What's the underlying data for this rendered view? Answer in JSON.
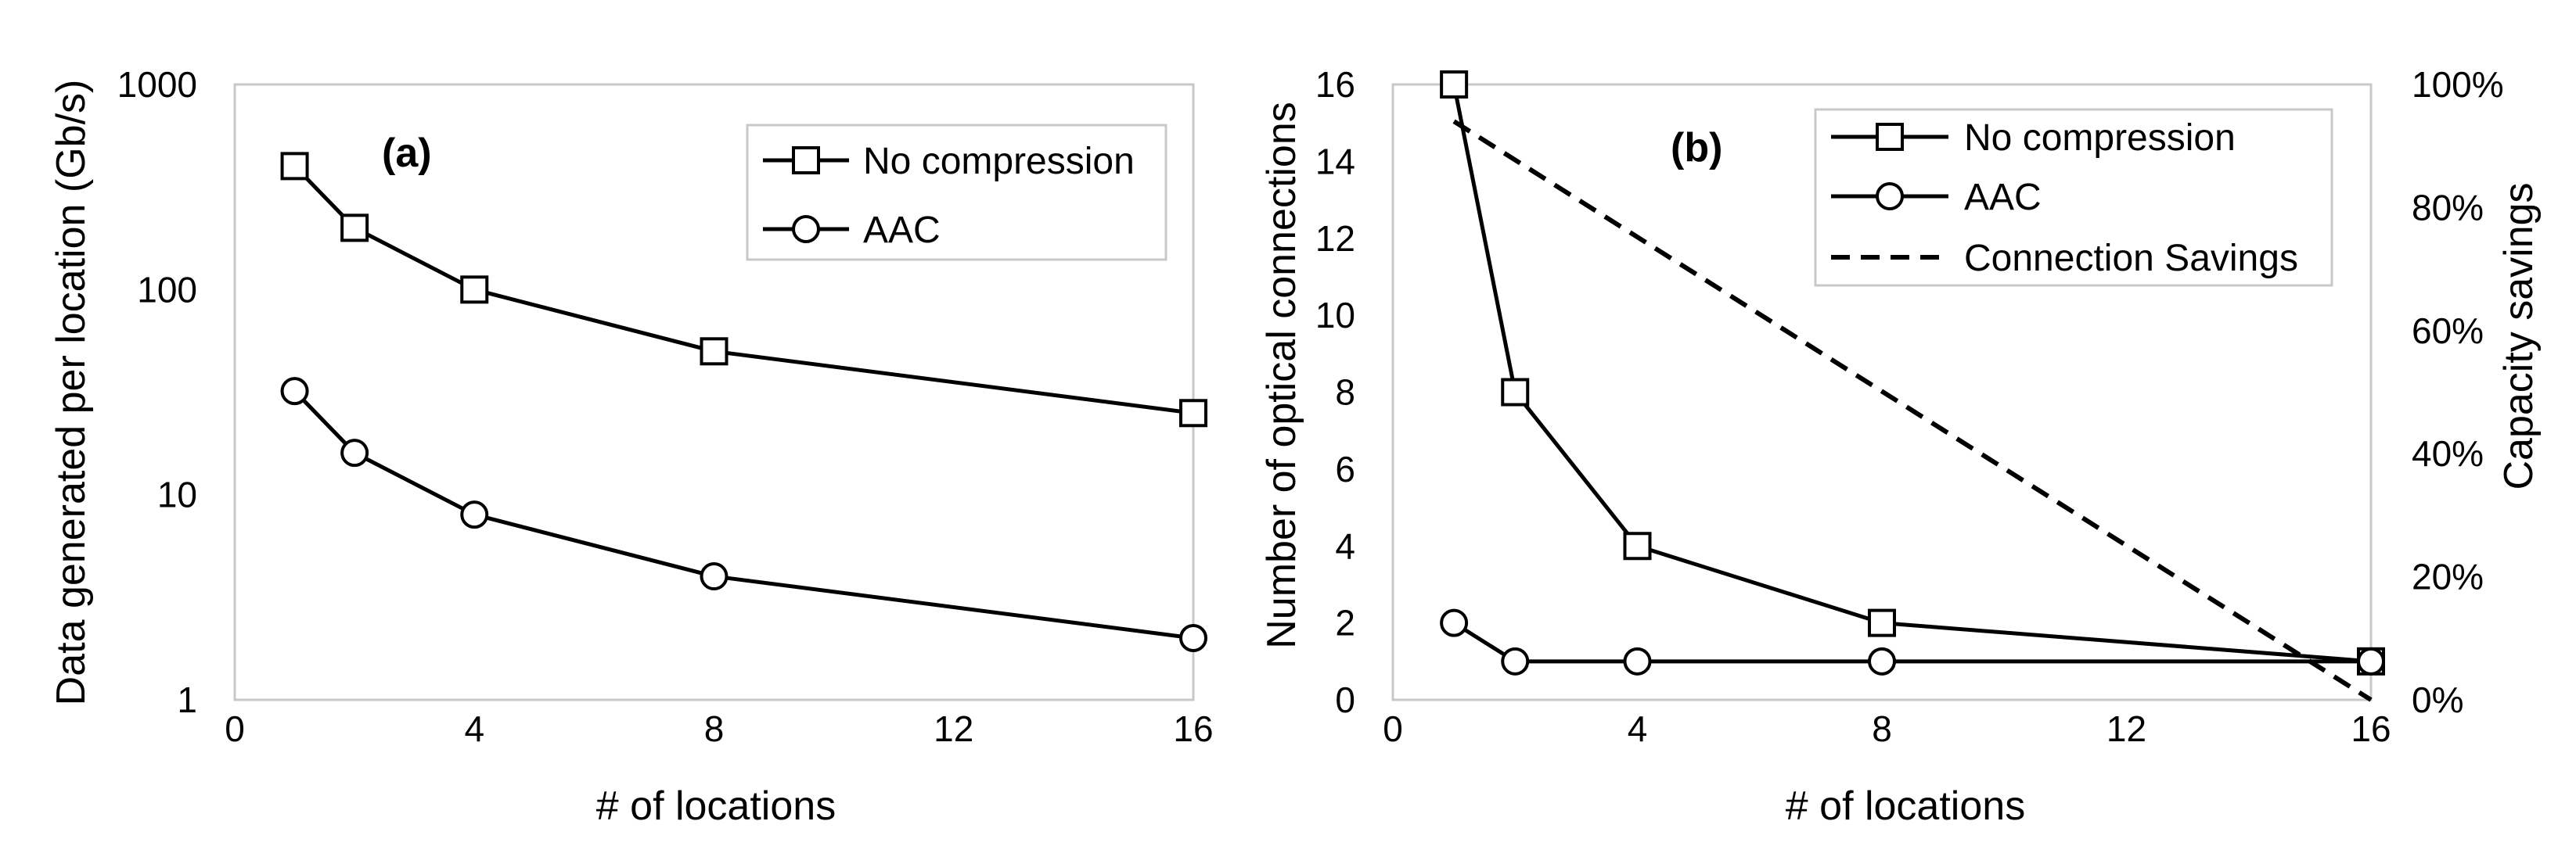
{
  "chart_data": [
    {
      "panel": "(a)",
      "type": "line",
      "yscale": "log",
      "xlabel": "# of locations",
      "ylabel": "Data generated per location (Gb/s)",
      "xlim": [
        0,
        16
      ],
      "ylim": [
        1,
        1000
      ],
      "xticks": [
        "0",
        "4",
        "8",
        "12",
        "16"
      ],
      "yticks": [
        "1",
        "10",
        "100",
        "1000"
      ],
      "series": [
        {
          "name": "No compression",
          "marker": "square",
          "x": [
            1,
            2,
            4,
            8,
            16
          ],
          "values": [
            400,
            200,
            100,
            50,
            25
          ]
        },
        {
          "name": "AAC",
          "marker": "circle",
          "x": [
            1,
            2,
            4,
            8,
            16
          ],
          "values": [
            32,
            16,
            8,
            4,
            2
          ]
        }
      ],
      "legend": "top-right"
    },
    {
      "panel": "(b)",
      "type": "line",
      "xlabel": "# of locations",
      "ylabel": "Number of optical connections",
      "y2label": "Capacity savings",
      "xlim": [
        0,
        16
      ],
      "ylim": [
        0,
        16
      ],
      "y2lim": [
        0,
        100
      ],
      "xticks": [
        "0",
        "4",
        "8",
        "12",
        "16"
      ],
      "yticks": [
        "0",
        "2",
        "4",
        "6",
        "8",
        "10",
        "12",
        "14",
        "16"
      ],
      "y2ticks": [
        "0%",
        "20%",
        "40%",
        "60%",
        "80%",
        "100%"
      ],
      "series": [
        {
          "name": "No compression",
          "marker": "square",
          "axis": "left",
          "x": [
            1,
            2,
            4,
            8,
            16
          ],
          "values": [
            16,
            8,
            4,
            2,
            1
          ]
        },
        {
          "name": "AAC",
          "marker": "circle",
          "axis": "left",
          "x": [
            1,
            2,
            4,
            8,
            16
          ],
          "values": [
            2,
            1,
            1,
            1,
            1
          ]
        },
        {
          "name": "Connection Savings",
          "marker": "none",
          "dash": true,
          "axis": "right",
          "x": [
            1,
            16
          ],
          "values": [
            94,
            0
          ]
        }
      ],
      "legend": "top-right"
    }
  ]
}
